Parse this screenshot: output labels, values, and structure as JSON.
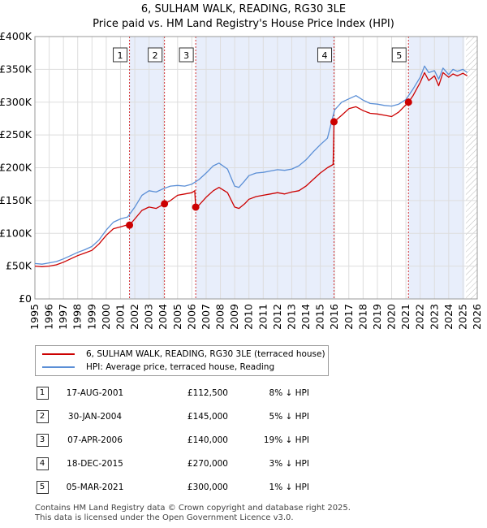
{
  "header": {
    "title": "6, SULHAM WALK, READING, RG30 3LE",
    "subtitle": "Price paid vs. HM Land Registry's House Price Index (HPI)"
  },
  "legend": [
    {
      "label": "6, SULHAM WALK, READING, RG30 3LE (terraced house)",
      "color": "#cc0000"
    },
    {
      "label": "HPI: Average price, terraced house, Reading",
      "color": "#5b8fd6"
    }
  ],
  "transactions": [
    {
      "num": "1",
      "date": "17-AUG-2001",
      "price": "£112,500",
      "hpi": "8% ↓ HPI"
    },
    {
      "num": "2",
      "date": "30-JAN-2004",
      "price": "£145,000",
      "hpi": "5% ↓ HPI"
    },
    {
      "num": "3",
      "date": "07-APR-2006",
      "price": "£140,000",
      "hpi": "19% ↓ HPI"
    },
    {
      "num": "4",
      "date": "18-DEC-2015",
      "price": "£270,000",
      "hpi": "3% ↓ HPI"
    },
    {
      "num": "5",
      "date": "05-MAR-2021",
      "price": "£300,000",
      "hpi": "1% ↓ HPI"
    }
  ],
  "footer": {
    "line1": "Contains HM Land Registry data © Crown copyright and database right 2025.",
    "line2": "This data is licensed under the Open Government Licence v3.0."
  },
  "chart_data": {
    "type": "line",
    "title": "6, SULHAM WALK, READING, RG30 3LE",
    "subtitle": "Price paid vs. HM Land Registry's House Price Index (HPI)",
    "xlim": [
      1995,
      2026
    ],
    "ylim": [
      0,
      400000
    ],
    "xticks": [
      "1995",
      "1996",
      "1997",
      "1998",
      "1999",
      "2000",
      "2001",
      "2002",
      "2003",
      "2004",
      "2005",
      "2006",
      "2007",
      "2008",
      "2009",
      "2010",
      "2011",
      "2012",
      "2013",
      "2014",
      "2015",
      "2016",
      "2017",
      "2018",
      "2019",
      "2020",
      "2021",
      "2022",
      "2023",
      "2024",
      "2025",
      "2026"
    ],
    "yticks": [
      {
        "value": 0,
        "label": "£0"
      },
      {
        "value": 50000,
        "label": "£50K"
      },
      {
        "value": 100000,
        "label": "£100K"
      },
      {
        "value": 150000,
        "label": "£150K"
      },
      {
        "value": 200000,
        "label": "£200K"
      },
      {
        "value": 250000,
        "label": "£250K"
      },
      {
        "value": 300000,
        "label": "£300K"
      },
      {
        "value": 350000,
        "label": "£350K"
      },
      {
        "value": 400000,
        "label": "£400K"
      }
    ],
    "shaded_periods": [
      [
        2001.63,
        2004.08
      ],
      [
        2006.27,
        2015.96
      ],
      [
        2021.18,
        2025.1
      ]
    ],
    "hatched_from": 2025.2,
    "sales": [
      {
        "num": "1",
        "x": 2001.63,
        "y": 112500
      },
      {
        "num": "2",
        "x": 2004.08,
        "y": 145000
      },
      {
        "num": "3",
        "x": 2006.27,
        "y": 140000
      },
      {
        "num": "4",
        "x": 2015.96,
        "y": 270000
      },
      {
        "num": "5",
        "x": 2021.18,
        "y": 300000
      }
    ],
    "series": [
      {
        "name": "HPI: Average price, terraced house, Reading",
        "color": "#5b8fd6",
        "x": [
          1995,
          1995.5,
          1996,
          1996.5,
          1997,
          1997.5,
          1998,
          1998.5,
          1999,
          1999.5,
          2000,
          2000.5,
          2001,
          2001.5,
          2002,
          2002.5,
          2003,
          2003.5,
          2004,
          2004.5,
          2005,
          2005.5,
          2006,
          2006.5,
          2007,
          2007.5,
          2007.9,
          2008.5,
          2009,
          2009.3,
          2009.7,
          2010,
          2010.5,
          2011,
          2011.5,
          2012,
          2012.5,
          2013,
          2013.5,
          2014,
          2014.5,
          2015,
          2015.5,
          2016,
          2016.5,
          2017,
          2017.5,
          2018,
          2018.5,
          2019,
          2019.5,
          2020,
          2020.5,
          2021,
          2021.5,
          2022,
          2022.3,
          2022.6,
          2023,
          2023.3,
          2023.6,
          2024,
          2024.3,
          2024.6,
          2025,
          2025.3
        ],
        "y": [
          54000,
          53000,
          55000,
          57000,
          61000,
          66000,
          71000,
          75000,
          80000,
          90000,
          105000,
          117000,
          122000,
          125000,
          140000,
          158000,
          165000,
          163000,
          168000,
          172000,
          173000,
          172000,
          175000,
          182000,
          192000,
          203000,
          207000,
          198000,
          172000,
          170000,
          180000,
          188000,
          192000,
          193000,
          195000,
          197000,
          196000,
          198000,
          203000,
          212000,
          224000,
          235000,
          245000,
          288000,
          300000,
          305000,
          310000,
          303000,
          298000,
          297000,
          295000,
          294000,
          297000,
          304000,
          320000,
          338000,
          355000,
          345000,
          348000,
          335000,
          352000,
          342000,
          350000,
          347000,
          350000,
          345000
        ]
      },
      {
        "name": "6, SULHAM WALK, READING, RG30 3LE (terraced house)",
        "color": "#cc0000",
        "x": [
          1995,
          1995.5,
          1996,
          1996.5,
          1997,
          1997.5,
          1998,
          1998.5,
          1999,
          1999.5,
          2000,
          2000.5,
          2001,
          2001.5,
          2001.63,
          2002,
          2002.5,
          2003,
          2003.5,
          2004.08,
          2004.5,
          2005,
          2005.5,
          2006,
          2006.2,
          2006.27,
          2006.5,
          2007,
          2007.5,
          2007.9,
          2008.5,
          2009,
          2009.3,
          2009.7,
          2010,
          2010.5,
          2011,
          2011.5,
          2012,
          2012.5,
          2013,
          2013.5,
          2014,
          2014.5,
          2015,
          2015.5,
          2015.9,
          2015.96,
          2016.5,
          2017,
          2017.5,
          2018,
          2018.5,
          2019,
          2019.5,
          2020,
          2020.5,
          2021,
          2021.18,
          2021.5,
          2022,
          2022.3,
          2022.6,
          2023,
          2023.3,
          2023.6,
          2024,
          2024.3,
          2024.6,
          2025,
          2025.3
        ],
        "y": [
          50000,
          49000,
          50000,
          52000,
          56000,
          61000,
          66000,
          70000,
          74000,
          84000,
          97000,
          107000,
          110000,
          113000,
          112500,
          122000,
          135000,
          140000,
          138000,
          145000,
          150000,
          158000,
          160000,
          162000,
          165000,
          140000,
          143000,
          155000,
          165000,
          170000,
          162000,
          140000,
          138000,
          145000,
          152000,
          156000,
          158000,
          160000,
          162000,
          160000,
          163000,
          165000,
          172000,
          182000,
          192000,
          200000,
          205000,
          270000,
          280000,
          290000,
          293000,
          287000,
          283000,
          282000,
          280000,
          278000,
          285000,
          296000,
          300000,
          310000,
          330000,
          345000,
          333000,
          340000,
          325000,
          345000,
          338000,
          343000,
          340000,
          344000,
          340000
        ]
      }
    ]
  }
}
